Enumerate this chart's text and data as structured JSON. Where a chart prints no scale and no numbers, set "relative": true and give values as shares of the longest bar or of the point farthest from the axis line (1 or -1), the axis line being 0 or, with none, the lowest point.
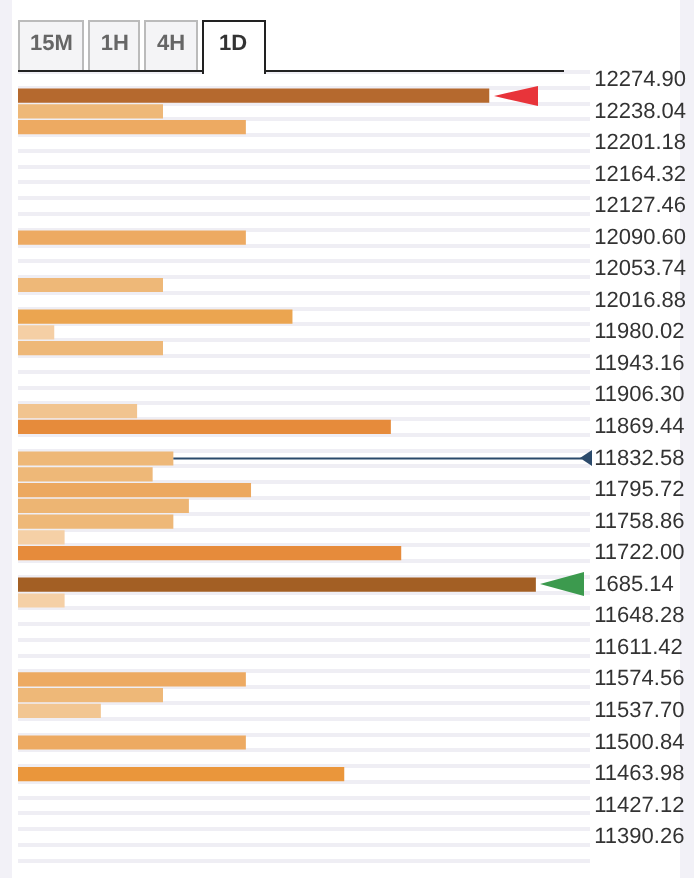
{
  "chart_data": {
    "type": "bar",
    "orientation": "horizontal",
    "relative": true,
    "grid": "y",
    "legend": false,
    "tick_labels": "y",
    "annotations": [
      "15M",
      "1H",
      "4H",
      "1D"
    ],
    "ref_lines": [
      {
        "axis": "y",
        "value": "11832.58",
        "color": "#2b4a6b"
      }
    ],
    "categories": [
      "12274.90",
      null,
      "12238.04",
      null,
      "12201.18",
      null,
      "12164.32",
      null,
      "12127.46",
      null,
      "12090.60",
      null,
      "12053.74",
      null,
      "12016.88",
      null,
      "11980.02",
      null,
      "11943.16",
      null,
      "11906.30",
      null,
      "11869.44",
      null,
      "11832.58",
      null,
      "11795.72",
      null,
      "11758.86",
      null,
      "11722.00",
      null,
      "1685.14",
      null,
      "11648.28",
      null,
      "11611.42",
      null,
      "11574.56",
      null,
      "11537.70",
      null,
      "11500.84",
      null,
      "11463.98",
      null,
      "11427.12",
      null,
      "11390.26",
      null
    ],
    "values": [
      0,
      0.91,
      0.28,
      0.44,
      0,
      0,
      0,
      0,
      0,
      0,
      0.44,
      0,
      0,
      0.28,
      0,
      0.53,
      0.07,
      0.28,
      0,
      0,
      0,
      0.23,
      0.72,
      0,
      0.3,
      0.26,
      0.45,
      0.33,
      0.3,
      0.09,
      0.74,
      0,
      1,
      0.09,
      0,
      0,
      0,
      0,
      0.44,
      0.28,
      0.16,
      0,
      0.44,
      0,
      0.63,
      0,
      0,
      0,
      0,
      0
    ],
    "colors": [
      "#eeb878",
      "#b5692e",
      "#eeb878",
      "#edaa62",
      "#eeb878",
      "#eeb878",
      "#eeb878",
      "#eeb878",
      "#eeb878",
      "#eeb878",
      "#edaa62",
      "#eeb878",
      "#eeb878",
      "#eeb878",
      "#eeb878",
      "#eba550",
      "#f5cfa5",
      "#eeb878",
      "#eeb878",
      "#eeb878",
      "#eeb878",
      "#f1c48f",
      "#e68b3b",
      "#eeb878",
      "#eeb878",
      "#eeb878",
      "#eca85f",
      "#edb573",
      "#eeb878",
      "#f5d0a6",
      "#e68b3b",
      "#eeb878",
      "#a35f24",
      "#f5d0a6",
      "#eeb878",
      "#eeb878",
      "#eeb878",
      "#eeb878",
      "#edaa62",
      "#eeb878",
      "#f2c692",
      "#eeb878",
      "#edaa62",
      "#eeb878",
      "#ea963b",
      "#eeb878",
      "#eeb878",
      "#eeb878",
      "#eeb878",
      "#eeb878"
    ]
  }
}
